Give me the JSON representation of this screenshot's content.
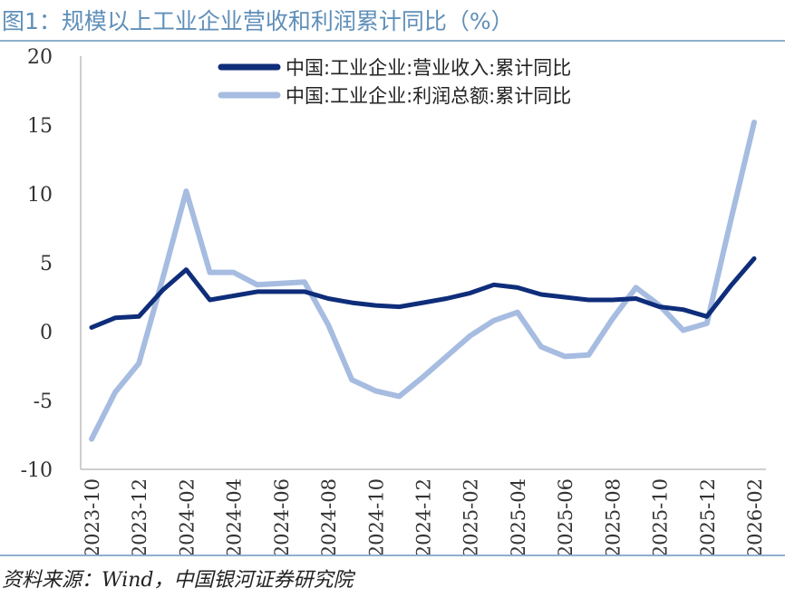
{
  "title": "图1：规模以上工业企业营收和利润累计同比（%）",
  "source": "资料来源：Wind，中国银河证券研究院",
  "chart_data": {
    "type": "line",
    "ylim": [
      -10,
      20
    ],
    "yticks": [
      "20",
      "15",
      "10",
      "5",
      "0",
      "-5",
      "-10"
    ],
    "ytick_values": [
      20,
      15,
      10,
      5,
      0,
      -5,
      -10
    ],
    "x": [
      "2023-10",
      "2023-11",
      "2023-12",
      "2024-01",
      "2024-02",
      "2024-03",
      "2024-04",
      "2024-05",
      "2024-06",
      "2024-07",
      "2024-08",
      "2024-09",
      "2024-10",
      "2024-11",
      "2024-12",
      "2025-01",
      "2025-02",
      "2025-03",
      "2025-04",
      "2025-05",
      "2025-06",
      "2025-07",
      "2025-08",
      "2025-09",
      "2025-10",
      "2025-11",
      "2025-12",
      "2026-01",
      "2026-02"
    ],
    "xtick_labels": [
      "2023-10",
      "2023-12",
      "2024-02",
      "2024-04",
      "2024-06",
      "2024-08",
      "2024-10",
      "2024-12",
      "2025-02",
      "2025-04",
      "2025-06",
      "2025-08",
      "2025-10",
      "2025-12",
      "2026-02"
    ],
    "legend_position": "top",
    "series": [
      {
        "name": "中国:工业企业:营业收入:累计同比",
        "color": "#0e2d7a",
        "values": [
          0.3,
          1.0,
          1.1,
          3.0,
          4.5,
          2.3,
          2.6,
          2.9,
          2.9,
          2.9,
          2.4,
          2.1,
          1.9,
          1.8,
          2.1,
          2.4,
          2.8,
          3.4,
          3.2,
          2.7,
          2.5,
          2.3,
          2.3,
          2.4,
          1.8,
          1.6,
          1.1,
          3.3,
          5.3
        ]
      },
      {
        "name": "中国:工业企业:利润总额:累计同比",
        "color": "#a6bce0",
        "values": [
          -7.8,
          -4.4,
          -2.3,
          3.8,
          10.2,
          4.3,
          4.3,
          3.4,
          3.5,
          3.6,
          0.5,
          -3.5,
          -4.3,
          -4.7,
          -3.3,
          -1.8,
          -0.3,
          0.8,
          1.4,
          -1.1,
          -1.8,
          -1.7,
          0.9,
          3.2,
          1.9,
          0.1,
          0.6,
          8.0,
          15.2
        ]
      }
    ]
  }
}
